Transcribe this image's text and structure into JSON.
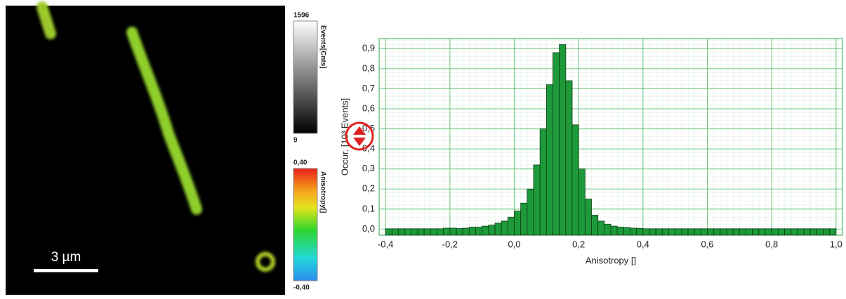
{
  "image": {
    "scale_bar": "3 µm"
  },
  "colorbars": [
    {
      "title": "Events[Cnts]",
      "max_label": "1596",
      "min_label": "9"
    },
    {
      "title": "Anisotropy[]",
      "max_label": "0,40",
      "min_label": "-0,40"
    }
  ],
  "chart_data": {
    "type": "histogram",
    "xlabel": "Anisotropy []",
    "ylabel": "Occur. [10³ Events]",
    "color": "#1e9a3a",
    "bins": [
      -0.4,
      -0.38,
      -0.36,
      -0.34,
      -0.32,
      -0.3,
      -0.28,
      -0.26,
      -0.24,
      -0.22,
      -0.2,
      -0.18,
      -0.16,
      -0.14,
      -0.12,
      -0.1,
      -0.08,
      -0.06,
      -0.04,
      -0.02,
      0.0,
      0.02,
      0.04,
      0.06,
      0.08,
      0.1,
      0.12,
      0.14,
      0.16,
      0.18,
      0.2,
      0.22,
      0.24,
      0.26,
      0.28,
      0.3,
      0.32,
      0.34,
      0.36,
      0.38,
      0.4,
      0.42,
      0.44,
      0.46,
      0.48,
      0.5,
      0.52,
      0.54,
      0.56,
      0.58,
      0.6,
      0.62,
      0.64,
      0.66,
      0.68,
      0.7,
      0.72,
      0.74,
      0.76,
      0.78,
      0.8,
      0.82,
      0.84,
      0.86,
      0.88,
      0.9,
      0.92,
      0.94,
      0.96,
      0.98,
      1.0
    ],
    "values": [
      0.002,
      0.002,
      0.002,
      0.002,
      0.002,
      0.002,
      0.002,
      0.002,
      0.002,
      0.005,
      0.005,
      0.003,
      0.005,
      0.01,
      0.01,
      0.015,
      0.02,
      0.03,
      0.04,
      0.06,
      0.09,
      0.13,
      0.2,
      0.32,
      0.5,
      0.72,
      0.88,
      0.92,
      0.74,
      0.52,
      0.3,
      0.15,
      0.07,
      0.04,
      0.025,
      0.015,
      0.01,
      0.008,
      0.005,
      0.004,
      0.002,
      0.002,
      0.002,
      0.002,
      0.002,
      0.002,
      0.002,
      0.002,
      0.002,
      0.002,
      0.002,
      0.002,
      0.002,
      0.002,
      0.002,
      0.002,
      0.002,
      0.002,
      0.002,
      0.002,
      0.002,
      0.002,
      0.002,
      0.002,
      0.002,
      0.002,
      0.002,
      0.002,
      0.002,
      0.002
    ],
    "xlim": [
      -0.42,
      1.02
    ],
    "ylim": [
      -0.03,
      0.95
    ],
    "xticks": [
      {
        "value": -0.4,
        "label": "-0,4"
      },
      {
        "value": -0.2,
        "label": "-0,2"
      },
      {
        "value": 0.0,
        "label": "0,0"
      },
      {
        "value": 0.2,
        "label": "0,2"
      },
      {
        "value": 0.4,
        "label": "0,4"
      },
      {
        "value": 0.6,
        "label": "0,6"
      },
      {
        "value": 0.8,
        "label": "0,8"
      },
      {
        "value": 1.0,
        "label": "1,0"
      }
    ],
    "yticks": [
      {
        "value": 0.0,
        "label": "0,0"
      },
      {
        "value": 0.1,
        "label": "0,1"
      },
      {
        "value": 0.2,
        "label": "0,2"
      },
      {
        "value": 0.3,
        "label": "0,3"
      },
      {
        "value": 0.4,
        "label": "0,4"
      },
      {
        "value": 0.5,
        "label": "0,5"
      },
      {
        "value": 0.6,
        "label": "0,6"
      },
      {
        "value": 0.7,
        "label": "0,7"
      },
      {
        "value": 0.8,
        "label": "0,8"
      },
      {
        "value": 0.9,
        "label": "0,9"
      }
    ],
    "grid": true
  }
}
